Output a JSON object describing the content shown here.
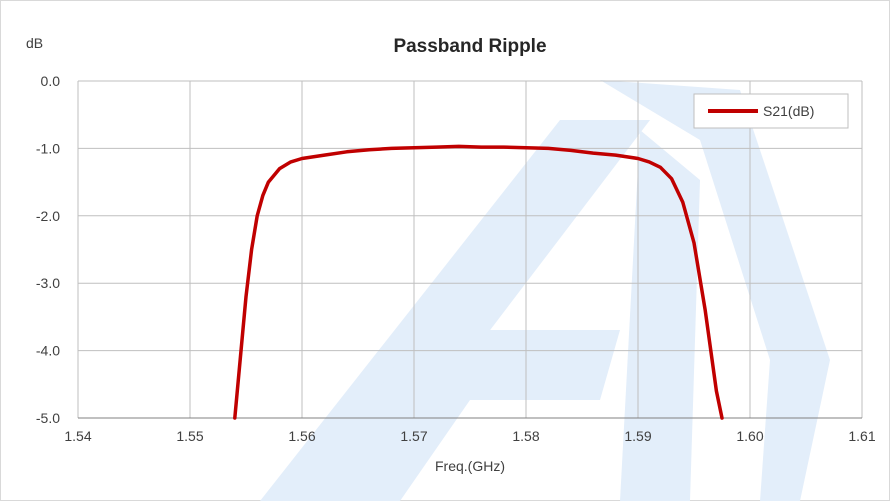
{
  "colors": {
    "series": "#c00000",
    "grid": "#bfbfbf",
    "axis": "#808080",
    "watermark": "#e3eefa"
  },
  "chart_data": {
    "type": "line",
    "title": "Passband Ripple",
    "ylabel": "dB",
    "xlabel": "Freq.(GHz)",
    "xlim": [
      1.54,
      1.61
    ],
    "ylim": [
      -5.0,
      0.0
    ],
    "x_ticks": [
      "1.54",
      "1.55",
      "1.56",
      "1.57",
      "1.58",
      "1.59",
      "1.60",
      "1.61"
    ],
    "y_ticks": [
      "0.0",
      "-1.0",
      "-2.0",
      "-3.0",
      "-4.0",
      "-5.0"
    ],
    "grid": true,
    "legend_position": "top-right",
    "series": [
      {
        "name": "S21(dB)",
        "x": [
          1.554,
          1.5545,
          1.555,
          1.5555,
          1.556,
          1.5565,
          1.557,
          1.558,
          1.559,
          1.56,
          1.562,
          1.564,
          1.566,
          1.568,
          1.57,
          1.572,
          1.574,
          1.576,
          1.578,
          1.58,
          1.582,
          1.584,
          1.586,
          1.588,
          1.59,
          1.591,
          1.592,
          1.593,
          1.594,
          1.595,
          1.596,
          1.5965,
          1.597,
          1.5975
        ],
        "y": [
          -5.0,
          -4.1,
          -3.2,
          -2.5,
          -2.0,
          -1.7,
          -1.5,
          -1.3,
          -1.2,
          -1.15,
          -1.1,
          -1.05,
          -1.02,
          -1.0,
          -0.99,
          -0.98,
          -0.97,
          -0.98,
          -0.98,
          -0.99,
          -1.0,
          -1.03,
          -1.07,
          -1.1,
          -1.15,
          -1.2,
          -1.28,
          -1.45,
          -1.8,
          -2.4,
          -3.4,
          -4.0,
          -4.6,
          -5.0
        ]
      }
    ]
  }
}
